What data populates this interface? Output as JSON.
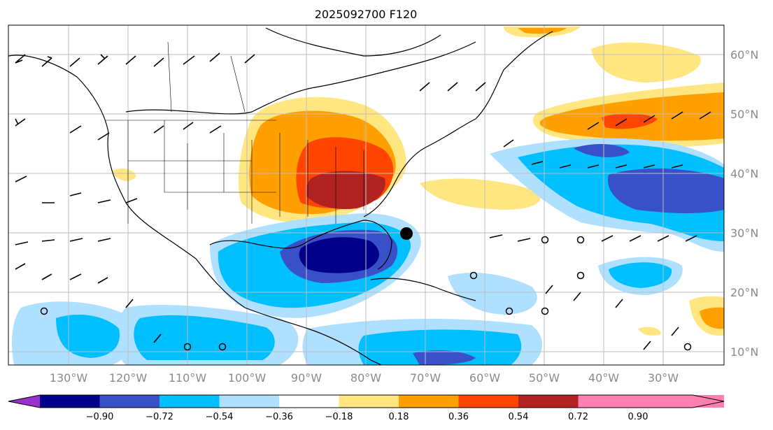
{
  "title": "2025092700 F120",
  "map": {
    "lon_labels": [
      "130°W",
      "120°W",
      "110°W",
      "100°W",
      "90°W",
      "80°W",
      "70°W",
      "60°W",
      "50°W",
      "40°W",
      "30°W"
    ],
    "lat_labels": [
      "60°N",
      "50°N",
      "40°N",
      "30°N",
      "20°N",
      "10°N"
    ],
    "grid": true,
    "marker": "storm-center-dot"
  },
  "colorbar": {
    "ticks": [
      "−0.90",
      "−0.72",
      "−0.54",
      "−0.36",
      "−0.18",
      "0.18",
      "0.36",
      "0.54",
      "0.72",
      "0.90"
    ],
    "colors": [
      "#9932cc",
      "#00008b",
      "#3a50c8",
      "#00bfff",
      "#b0e0ff",
      "#ffffff",
      "#ffe680",
      "#ffa000",
      "#ff4500",
      "#b22222",
      "#ff7fb0"
    ],
    "extend": "both"
  }
}
